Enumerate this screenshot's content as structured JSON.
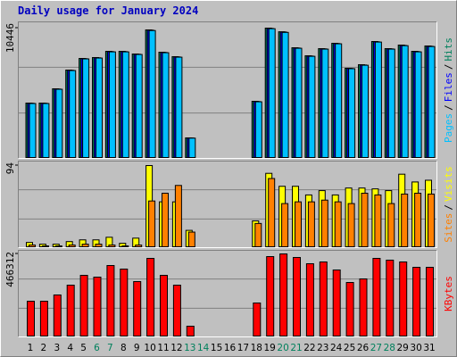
{
  "chart_data": {
    "type": "bar",
    "title": "Daily usage for January 2024",
    "categories": [
      "1",
      "2",
      "3",
      "4",
      "5",
      "6",
      "7",
      "8",
      "9",
      "10",
      "11",
      "12",
      "13",
      "14",
      "15",
      "16",
      "17",
      "18",
      "19",
      "20",
      "21",
      "22",
      "23",
      "24",
      "25",
      "26",
      "27",
      "28",
      "29",
      "30",
      "31"
    ],
    "category_colors": [
      "#000000",
      "#000000",
      "#000000",
      "#000000",
      "#000000",
      "#00805c",
      "#00805c",
      "#000000",
      "#000000",
      "#000000",
      "#000000",
      "#000000",
      "#00805c",
      "#00805c",
      "#000000",
      "#000000",
      "#000000",
      "#000000",
      "#000000",
      "#00805c",
      "#00805c",
      "#000000",
      "#000000",
      "#000000",
      "#000000",
      "#000000",
      "#00805c",
      "#00805c",
      "#000000",
      "#000000",
      "#000000"
    ],
    "legend_separator": "/",
    "panels": [
      {
        "ylim": [
          0,
          10446
        ],
        "yticks": [
          10446
        ],
        "series": [
          {
            "name": "Hits",
            "color": "#00805c",
            "values": [
              4395,
              4395,
              5547,
              7060,
              7997,
              8069,
              8573,
              8573,
              8357,
              10300,
              8501,
              8141,
              1585,
              0,
              0,
              0,
              0,
              4539,
              10446,
              10150,
              8861,
              8213,
              8789,
              9221,
              7204,
              7492,
              9365,
              8789,
              9077,
              8573,
              9005
            ]
          },
          {
            "name": "Files",
            "color": "#0000ff",
            "values": [
              4380,
              4380,
              5530,
              7040,
              7980,
              8050,
              8550,
              8550,
              8340,
              10280,
              8480,
              8120,
              1575,
              0,
              0,
              0,
              0,
              4520,
              10420,
              10130,
              8840,
              8190,
              8770,
              9200,
              7190,
              7470,
              9340,
              8770,
              9050,
              8550,
              8980
            ]
          },
          {
            "name": "Pages",
            "color": "#00c0ff",
            "values": [
              4360,
              4360,
              5510,
              7020,
              7960,
              8030,
              8530,
              8530,
              8320,
              10250,
              8460,
              8100,
              1565,
              0,
              0,
              0,
              0,
              4500,
              10400,
              10100,
              8820,
              8170,
              8750,
              9180,
              7170,
              7450,
              9320,
              8750,
              9030,
              8530,
              8960
            ]
          }
        ]
      },
      {
        "ylim": [
          0,
          94
        ],
        "yticks": [
          94
        ],
        "series": [
          {
            "name": "Visits",
            "color": "#ffff00",
            "values": [
              5,
              3,
              3,
              6,
              8,
              8,
              11,
              4,
              10,
              94,
              52,
              52,
              19,
              0,
              0,
              0,
              0,
              30,
              85,
              70,
              70,
              60,
              65,
              60,
              68,
              68,
              67,
              65,
              84,
              75,
              77
            ]
          },
          {
            "name": "Sites",
            "color": "#ff8000",
            "values": [
              2,
              1,
              1,
              2,
              3,
              3,
              2,
              1,
              2,
              53,
              62,
              71,
              17,
              0,
              0,
              0,
              0,
              27,
              79,
              50,
              52,
              52,
              54,
              52,
              50,
              62,
              60,
              50,
              61,
              62,
              61
            ]
          }
        ]
      },
      {
        "ylim": [
          0,
          466312
        ],
        "yticks": [
          466312
        ],
        "series": [
          {
            "name": "KBytes",
            "color": "#ff0000",
            "values": [
              197700,
              197700,
              233200,
              288900,
              344700,
              334500,
              400400,
              380200,
              309200,
              441000,
              344700,
              288900,
              55800,
              0,
              0,
              0,
              0,
              187600,
              451100,
              466312,
              446100,
              410600,
              420700,
              375100,
              304100,
              324400,
              441000,
              430900,
              420700,
              390300,
              390300
            ]
          }
        ]
      }
    ]
  }
}
